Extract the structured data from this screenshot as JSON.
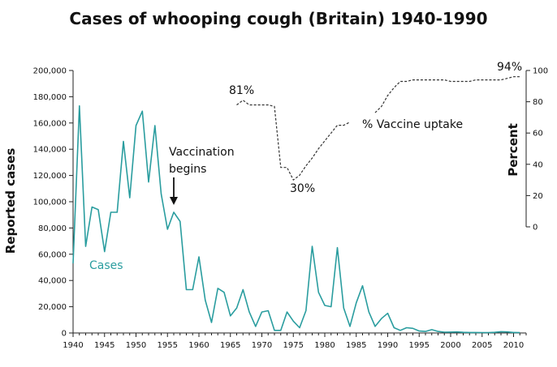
{
  "chart_data": {
    "type": "line",
    "title": "Cases of whooping cough (Britain) 1940-1990",
    "xlabel": "",
    "ylabel": "Reported cases",
    "ylabel_right": "Percent",
    "xlim": [
      1940,
      2012
    ],
    "ylim": [
      0,
      200000
    ],
    "ylim_right": [
      0,
      100
    ],
    "x_ticks": [
      1940,
      1945,
      1950,
      1955,
      1960,
      1965,
      1970,
      1975,
      1980,
      1985,
      1990,
      1995,
      2000,
      2005,
      2010
    ],
    "x_tick_labels": [
      "1940",
      "1945",
      "1950",
      "1955",
      "1960",
      "1965",
      "1970",
      "1975",
      "1980",
      "1985",
      "1990",
      "1995",
      "2000",
      "2005",
      "2010"
    ],
    "y_ticks": [
      0,
      20000,
      40000,
      60000,
      80000,
      100000,
      120000,
      140000,
      160000,
      180000,
      200000
    ],
    "y_tick_labels": [
      "0",
      "20,000",
      "40,000",
      "60,000",
      "80,000",
      "100,000",
      "120,000",
      "140,000",
      "160,000",
      "180,000",
      "200,000"
    ],
    "y_ticks_right": [
      0,
      20,
      40,
      60,
      80,
      100
    ],
    "y_tick_labels_right": [
      "0",
      "20",
      "40",
      "60",
      "80",
      "100"
    ],
    "series": [
      {
        "name": "Cases",
        "label": "Cases",
        "color": "#2a9d9f",
        "axis": "left",
        "style": "solid",
        "x": [
          1940,
          1941,
          1942,
          1943,
          1944,
          1945,
          1946,
          1947,
          1948,
          1949,
          1950,
          1951,
          1952,
          1953,
          1954,
          1955,
          1956,
          1957,
          1958,
          1959,
          1960,
          1961,
          1962,
          1963,
          1964,
          1965,
          1966,
          1967,
          1968,
          1969,
          1970,
          1971,
          1972,
          1973,
          1974,
          1975,
          1976,
          1977,
          1978,
          1979,
          1980,
          1981,
          1982,
          1983,
          1984,
          1985,
          1986,
          1987,
          1988,
          1989,
          1990,
          1991,
          1992,
          1993,
          1994,
          1995,
          1996,
          1997,
          1998,
          1999,
          2000,
          2001,
          2002,
          2003,
          2004,
          2005,
          2006,
          2007,
          2008,
          2009,
          2010,
          2011
        ],
        "values": [
          53000,
          173000,
          66000,
          96000,
          94000,
          62000,
          92000,
          92000,
          146000,
          103000,
          158000,
          169000,
          115000,
          158000,
          106000,
          79000,
          92000,
          85000,
          33000,
          33000,
          58000,
          25000,
          8000,
          34000,
          31000,
          13000,
          19000,
          33000,
          16000,
          5000,
          16000,
          17000,
          2000,
          2000,
          16000,
          9000,
          4000,
          17000,
          66000,
          31000,
          21000,
          20000,
          65000,
          19000,
          5000,
          23000,
          36000,
          16000,
          5000,
          11000,
          15000,
          4000,
          2000,
          4000,
          3500,
          1500,
          1200,
          2500,
          1200,
          600,
          700,
          800,
          500,
          400,
          350,
          300,
          300,
          500,
          1000,
          800,
          400,
          300
        ]
      },
      {
        "name": "% Vaccine uptake",
        "label": "% Vaccine uptake",
        "color": "#333333",
        "axis": "right",
        "style": "dashed",
        "segments": [
          {
            "x": [
              1966,
              1967,
              1968,
              1969,
              1970,
              1971,
              1972,
              1973,
              1974,
              1975,
              1976,
              1977,
              1978,
              1979,
              1980,
              1981,
              1982,
              1983,
              1984
            ],
            "values": [
              78,
              81,
              78,
              78,
              78,
              78,
              77,
              38,
              38,
              30,
              33,
              39,
              44,
              50,
              55,
              60,
              65,
              65,
              67
            ]
          },
          {
            "x": [
              1988,
              1989,
              1990,
              1991,
              1992,
              1993,
              1994,
              1995,
              1996,
              1997,
              1998,
              1999,
              2000,
              2001,
              2002,
              2003,
              2004,
              2005,
              2006,
              2007,
              2008,
              2009,
              2010,
              2011
            ],
            "values": [
              73,
              77,
              84,
              89,
              93,
              93,
              94,
              94,
              94,
              94,
              94,
              94,
              93,
              93,
              93,
              93,
              94,
              94,
              94,
              94,
              94,
              95,
              96,
              96
            ]
          }
        ]
      }
    ],
    "annotations": {
      "vaccination_line1": "Vaccination",
      "vaccination_line2": "begins",
      "vaccination_year": 1956,
      "uptake_start": "81%",
      "uptake_min": "30%",
      "uptake_end": "94%"
    }
  }
}
